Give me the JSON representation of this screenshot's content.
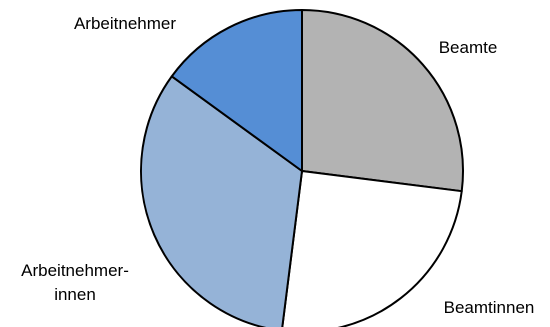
{
  "chart_data": {
    "type": "pie",
    "title": "",
    "start_angle_deg": 0,
    "direction": "clockwise",
    "slices": [
      {
        "label": "Beamte",
        "value": 27,
        "color": "#b3b3b3"
      },
      {
        "label": "Beamtinnen",
        "value": 25,
        "color": "#ffffff"
      },
      {
        "label": "Arbeitnehmer-innen",
        "label_lines": [
          "Arbeitnehmer-",
          "innen"
        ],
        "value": 33,
        "color": "#95b3d7"
      },
      {
        "label": "Arbeitnehmer",
        "value": 15,
        "color": "#558ed5"
      }
    ],
    "legend": "none"
  }
}
